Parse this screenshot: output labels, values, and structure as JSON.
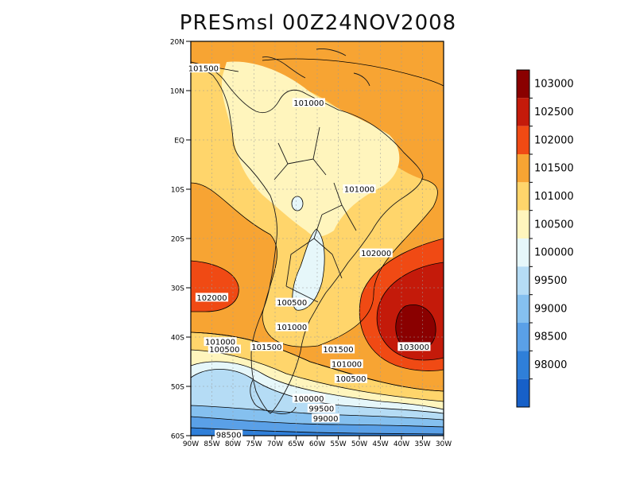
{
  "title": "PRESmsl 00Z24NOV2008",
  "map": {
    "lat_labels": [
      "20N",
      "10N",
      "EQ",
      "10S",
      "20S",
      "30S",
      "40S",
      "50S",
      "60S"
    ],
    "lon_labels": [
      "90W",
      "85W",
      "80W",
      "75W",
      "70W",
      "65W",
      "60W",
      "55W",
      "50W",
      "45W",
      "40W",
      "35W",
      "30W"
    ],
    "lon_range": [
      -90,
      -30
    ],
    "lat_range": [
      -60,
      20
    ]
  },
  "contour_labels": [
    {
      "text": "101500",
      "lon": -87,
      "lat": 14.5
    },
    {
      "text": "101000",
      "lon": -62,
      "lat": 7.5
    },
    {
      "text": "101000",
      "lon": -50,
      "lat": -10
    },
    {
      "text": "102000",
      "lon": -46,
      "lat": -23
    },
    {
      "text": "102000",
      "lon": -85,
      "lat": -32
    },
    {
      "text": "100500",
      "lon": -66,
      "lat": -33
    },
    {
      "text": "101000",
      "lon": -66,
      "lat": -38
    },
    {
      "text": "103000",
      "lon": -37,
      "lat": -42
    },
    {
      "text": "101000",
      "lon": -83,
      "lat": -41
    },
    {
      "text": "100500",
      "lon": -82,
      "lat": -42.5
    },
    {
      "text": "101500",
      "lon": -72,
      "lat": -42
    },
    {
      "text": "101500",
      "lon": -55,
      "lat": -42.5
    },
    {
      "text": "101000",
      "lon": -53,
      "lat": -45.5
    },
    {
      "text": "100500",
      "lon": -52,
      "lat": -48.5
    },
    {
      "text": "100000",
      "lon": -62,
      "lat": -52.5
    },
    {
      "text": "99500",
      "lon": -59,
      "lat": -54.5
    },
    {
      "text": "99000",
      "lon": -58,
      "lat": -56.5
    },
    {
      "text": "98500",
      "lon": -81,
      "lat": -59.8
    }
  ],
  "colorbar": {
    "labels": [
      "103000",
      "102500",
      "102000",
      "101500",
      "101000",
      "100500",
      "100000",
      "99500",
      "99000",
      "98500",
      "98000"
    ],
    "colors": [
      "#8a0000",
      "#c41a0a",
      "#f04a14",
      "#f7a433",
      "#ffd56b",
      "#fff5bd",
      "#e6f7fa",
      "#b5dcf5",
      "#85c0ef",
      "#5aa0e7",
      "#2f7fd9",
      "#1760c8"
    ]
  }
}
